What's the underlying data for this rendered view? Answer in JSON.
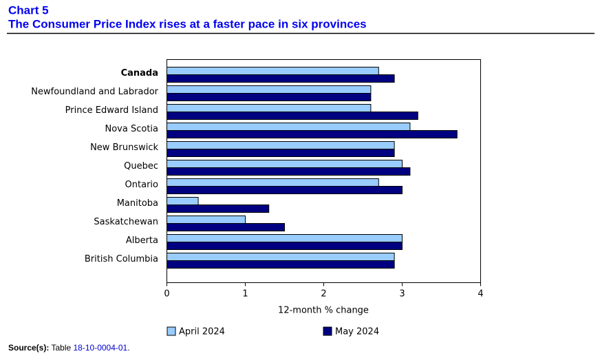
{
  "chart_data": {
    "type": "bar",
    "orientation": "horizontal",
    "chart_label": "Chart 5",
    "title": "The Consumer Price Index rises at a faster pace in six provinces",
    "x_label": "12-month % change",
    "categories": [
      "Canada",
      "Newfoundland and Labrador",
      "Prince Edward Island",
      "Nova Scotia",
      "New Brunswick",
      "Quebec",
      "Ontario",
      "Manitoba",
      "Saskatchewan",
      "Alberta",
      "British Columbia"
    ],
    "series": [
      {
        "name": "April 2024",
        "color": "#99ccff",
        "values": [
          2.7,
          2.6,
          2.6,
          3.1,
          2.9,
          3.0,
          2.7,
          0.4,
          1.0,
          3.0,
          2.9
        ]
      },
      {
        "name": "May 2024",
        "color": "#000080",
        "values": [
          2.9,
          2.6,
          3.2,
          3.7,
          2.9,
          3.1,
          3.0,
          1.3,
          1.5,
          3.0,
          2.9
        ]
      }
    ],
    "xlim": [
      0,
      4
    ],
    "xticks": [
      0,
      1,
      2,
      3,
      4
    ],
    "grid": false,
    "legend": "bottom",
    "source": {
      "label": "Source(s):",
      "text": "Table",
      "link": "18-10-0004-01",
      "end": "."
    }
  }
}
